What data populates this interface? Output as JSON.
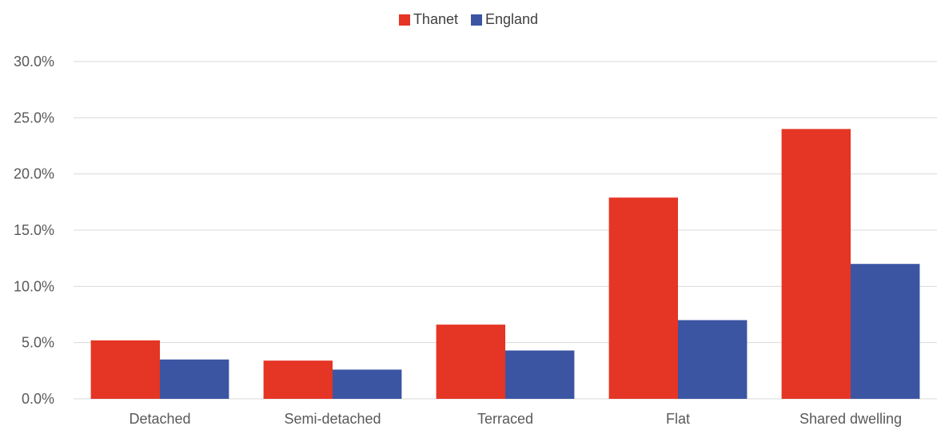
{
  "chart_data": {
    "type": "bar",
    "categories": [
      "Detached",
      "Semi-detached",
      "Terraced",
      "Flat",
      "Shared dwelling"
    ],
    "series": [
      {
        "name": "Thanet",
        "color": "#e53524",
        "values": [
          5.2,
          3.4,
          6.6,
          17.9,
          24.0
        ]
      },
      {
        "name": "England",
        "color": "#3b55a3",
        "values": [
          3.5,
          2.6,
          4.3,
          7.0,
          12.0
        ]
      }
    ],
    "yticks": [
      "0.0%",
      "5.0%",
      "10.0%",
      "15.0%",
      "20.0%",
      "25.0%",
      "30.0%"
    ],
    "ylim": [
      0,
      30
    ],
    "ytick_step": 5,
    "grid": true,
    "legend_position": "top-center",
    "gridline_color": "#d9d9d9",
    "text_color": "#595959"
  }
}
